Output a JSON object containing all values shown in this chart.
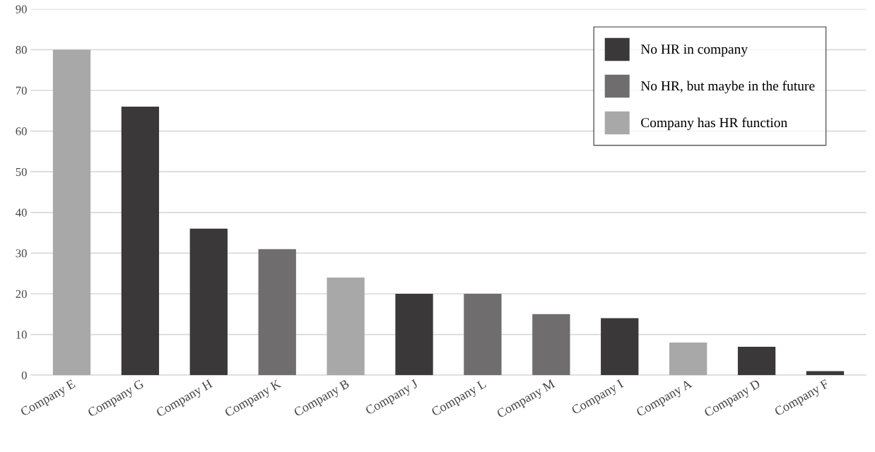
{
  "chart_data": {
    "type": "bar",
    "categories": [
      "Company E",
      "Company G",
      "Company H",
      "Company K",
      "Company B",
      "Company J",
      "Company L",
      "Company M",
      "Company I",
      "Company A",
      "Company D",
      "Company F"
    ],
    "series": [
      {
        "name": "No HR in company",
        "color": "#3a3839",
        "values": [
          null,
          66,
          36,
          null,
          null,
          20,
          null,
          null,
          14,
          null,
          7,
          1
        ]
      },
      {
        "name": "No HR, but maybe in the future",
        "color": "#6f6d6e",
        "values": [
          null,
          null,
          null,
          31,
          null,
          null,
          20,
          15,
          null,
          null,
          null,
          null
        ]
      },
      {
        "name": "Company has HR function",
        "color": "#a9a8a9",
        "values": [
          80,
          null,
          null,
          null,
          24,
          null,
          null,
          null,
          null,
          8,
          null,
          null
        ]
      }
    ],
    "ylim": [
      0,
      90
    ],
    "yticks": [
      0,
      10,
      20,
      30,
      40,
      50,
      60,
      70,
      80,
      90
    ],
    "grid": "y",
    "legend": "top right"
  }
}
